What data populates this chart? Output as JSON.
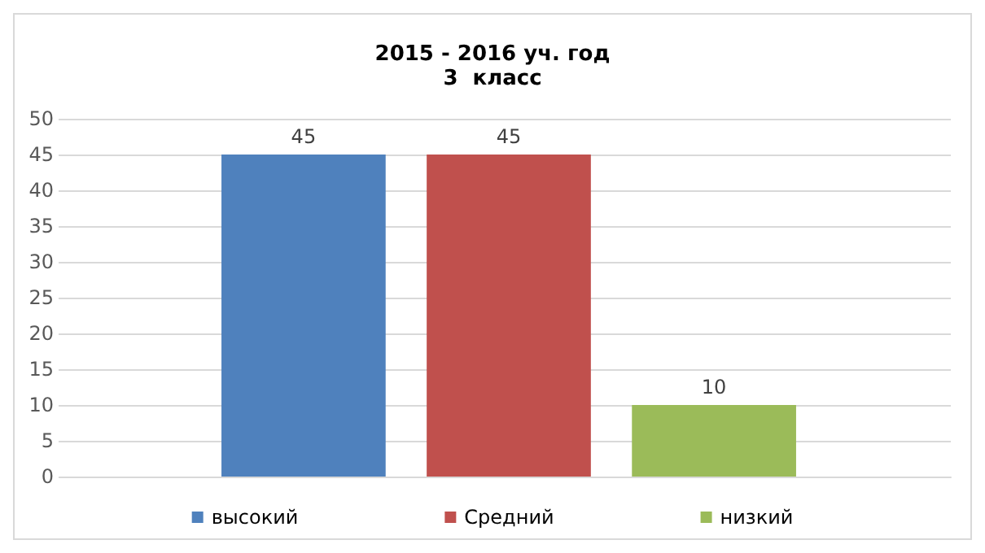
{
  "chart_data": {
    "type": "bar",
    "title": "2015 - 2016 уч. год\n3  класс",
    "categories": [
      null
    ],
    "series": [
      {
        "name": "высокий",
        "color": "#4f81bd",
        "values": [
          45
        ]
      },
      {
        "name": "Средний",
        "color": "#c0504d",
        "values": [
          45
        ]
      },
      {
        "name": "низкий",
        "color": "#9bbb59",
        "values": [
          10
        ]
      }
    ],
    "ylim": [
      0,
      50
    ],
    "yticks": [
      0,
      5,
      10,
      15,
      20,
      25,
      30,
      35,
      40,
      45,
      50
    ],
    "grid": "y",
    "legend": "bottom",
    "data_labels": true
  }
}
